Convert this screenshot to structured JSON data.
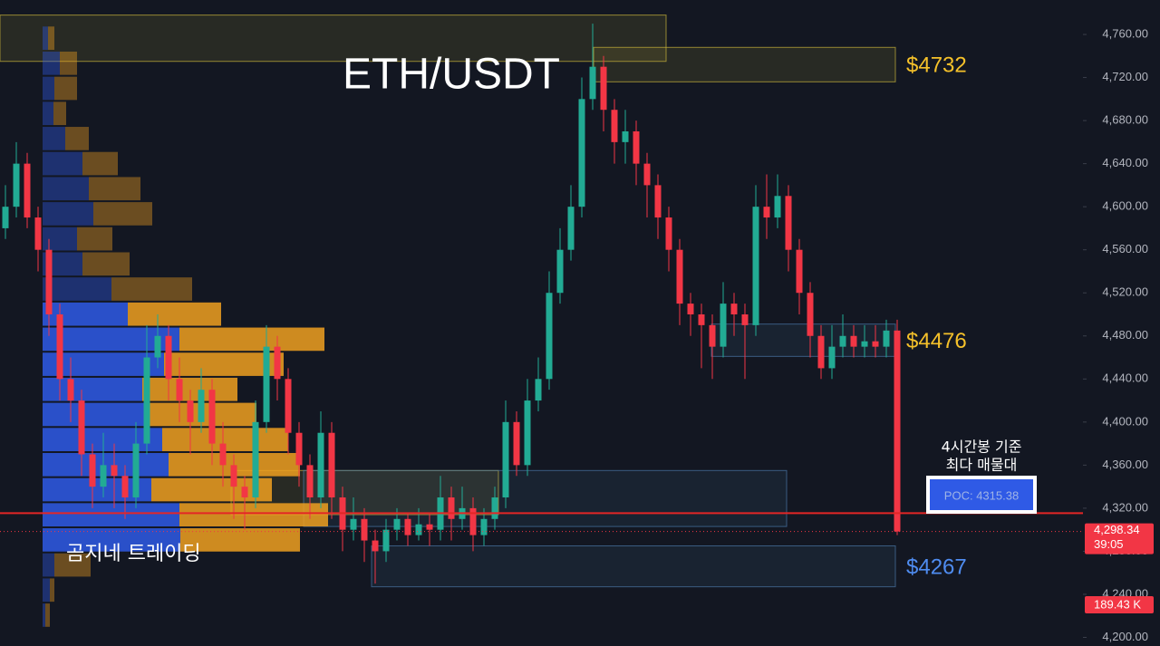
{
  "chart_data": {
    "type": "candlestick",
    "title": "ETH/USDT",
    "watermark": "곰지네 트레이딩",
    "ylim": [
      4192,
      4792
    ],
    "yticks": [
      {
        "value": 4200,
        "label": "4,200.00"
      },
      {
        "value": 4240,
        "label": "4,240.00"
      },
      {
        "value": 4280,
        "label": "4,280.00"
      },
      {
        "value": 4320,
        "label": "4,320.00"
      },
      {
        "value": 4360,
        "label": "4,360.00"
      },
      {
        "value": 4400,
        "label": "4,400.00"
      },
      {
        "value": 4440,
        "label": "4,440.00"
      },
      {
        "value": 4480,
        "label": "4,480.00"
      },
      {
        "value": 4520,
        "label": "4,520.00"
      },
      {
        "value": 4560,
        "label": "4,560.00"
      },
      {
        "value": 4600,
        "label": "4,600.00"
      },
      {
        "value": 4640,
        "label": "4,640.00"
      },
      {
        "value": 4680,
        "label": "4,680.00"
      },
      {
        "value": 4720,
        "label": "4,720.00"
      },
      {
        "value": 4760,
        "label": "4,760.00"
      }
    ],
    "up_color": "#22ab94",
    "down_color": "#f23645",
    "open": [
      4580,
      4600,
      4640,
      4590,
      4560,
      4500,
      4440,
      4420,
      4370,
      4340,
      4360,
      4350,
      4330,
      4380,
      4460,
      4480,
      4440,
      4420,
      4400,
      4430,
      4380,
      4360,
      4340,
      4330,
      4400,
      4470,
      4440,
      4390,
      4360,
      4330,
      4390,
      4330,
      4300,
      4310,
      4290,
      4280,
      4300,
      4310,
      4295,
      4305,
      4300,
      4330,
      4310,
      4320,
      4295,
      4310,
      4330,
      4400,
      4360,
      4420,
      4440,
      4520,
      4560,
      4600,
      4700,
      4730,
      4690,
      4660,
      4670,
      4640,
      4620,
      4590,
      4560,
      4510,
      4500,
      4490,
      4470,
      4510,
      4500,
      4490,
      4600,
      4590,
      4610,
      4560,
      4520,
      4480,
      4450,
      4470,
      4480,
      4470,
      4475,
      4470,
      4485
    ],
    "high": [
      4620,
      4660,
      4650,
      4600,
      4570,
      4510,
      4460,
      4430,
      4380,
      4390,
      4380,
      4360,
      4400,
      4490,
      4500,
      4490,
      4460,
      4430,
      4450,
      4440,
      4400,
      4370,
      4350,
      4420,
      4490,
      4480,
      4450,
      4400,
      4370,
      4410,
      4400,
      4340,
      4330,
      4320,
      4300,
      4310,
      4320,
      4315,
      4320,
      4315,
      4350,
      4340,
      4340,
      4330,
      4320,
      4340,
      4420,
      4410,
      4440,
      4460,
      4540,
      4580,
      4620,
      4720,
      4770,
      4740,
      4700,
      4690,
      4680,
      4650,
      4630,
      4600,
      4570,
      4520,
      4510,
      4500,
      4530,
      4520,
      4510,
      4620,
      4630,
      4630,
      4620,
      4570,
      4530,
      4490,
      4490,
      4500,
      4490,
      4490,
      4490,
      4495,
      4495
    ],
    "low": [
      4570,
      4590,
      4580,
      4540,
      4480,
      4420,
      4400,
      4350,
      4320,
      4330,
      4320,
      4310,
      4320,
      4370,
      4450,
      4420,
      4400,
      4370,
      4390,
      4360,
      4340,
      4310,
      4300,
      4320,
      4390,
      4420,
      4370,
      4340,
      4310,
      4320,
      4310,
      4280,
      4290,
      4270,
      4250,
      4270,
      4290,
      4285,
      4290,
      4285,
      4290,
      4290,
      4300,
      4280,
      4285,
      4300,
      4320,
      4350,
      4350,
      4410,
      4430,
      4510,
      4550,
      4590,
      4690,
      4670,
      4640,
      4640,
      4620,
      4590,
      4570,
      4540,
      4490,
      4480,
      4450,
      4440,
      4460,
      4480,
      4440,
      4480,
      4570,
      4580,
      4540,
      4500,
      4460,
      4440,
      4440,
      4460,
      4460,
      4460,
      4460,
      4460,
      4295
    ],
    "close": [
      4600,
      4640,
      4590,
      4560,
      4500,
      4440,
      4420,
      4370,
      4340,
      4360,
      4350,
      4330,
      4380,
      4460,
      4480,
      4440,
      4420,
      4400,
      4430,
      4380,
      4360,
      4340,
      4330,
      4400,
      4470,
      4440,
      4390,
      4360,
      4330,
      4390,
      4330,
      4300,
      4310,
      4290,
      4280,
      4300,
      4310,
      4295,
      4305,
      4300,
      4330,
      4310,
      4320,
      4295,
      4310,
      4330,
      4400,
      4360,
      4420,
      4440,
      4520,
      4560,
      4600,
      4700,
      4730,
      4690,
      4660,
      4670,
      4640,
      4620,
      4590,
      4560,
      4510,
      4500,
      4490,
      4470,
      4510,
      4500,
      4490,
      4600,
      4590,
      4610,
      4560,
      4520,
      4480,
      4450,
      4470,
      4480,
      4470,
      4475,
      4470,
      4485,
      4298.34
    ],
    "volume_profile": {
      "bins": [
        4209.0,
        4232.3,
        4255.6,
        4278.9,
        4302.2,
        4325.5,
        4348.8,
        4372.1,
        4395.4,
        4418.7,
        4442.0,
        4465.3,
        4488.6,
        4511.9,
        4535.2,
        4558.5,
        4581.8,
        4605.1,
        4628.4,
        4651.7,
        4675.0,
        4698.3,
        4721.6,
        4744.9,
        4768.2
      ],
      "buy": [
        3,
        8,
        13,
        152,
        151,
        120,
        139,
        132,
        114,
        110,
        134,
        151,
        94,
        76,
        44,
        38,
        56,
        51,
        44,
        25,
        12,
        13,
        19,
        6
      ],
      "sell": [
        5,
        5,
        40,
        132,
        164,
        133,
        145,
        139,
        122,
        105,
        132,
        160,
        103,
        89,
        52,
        39,
        65,
        57,
        39,
        26,
        14,
        25,
        19,
        7
      ],
      "xlim": [
        0,
        1148
      ],
      "value_area": [
        4278.9,
        4511.9
      ],
      "buy_color": "#2f5ae6",
      "sell_color": "#f0a020"
    },
    "zones": [
      {
        "low": 4735,
        "high": 4778,
        "color": "#c9b43a"
      },
      {
        "low": 4716,
        "high": 4748,
        "color": "#c9b43a",
        "label": "$4732",
        "label_color": "#f5c12a"
      },
      {
        "low": 4461,
        "high": 4491,
        "color": "#4a78a8",
        "label": "$4476",
        "label_color": "#f5c12a"
      },
      {
        "low": 4314,
        "high": 4355,
        "color": "#c9b43a"
      },
      {
        "low": 4303,
        "high": 4355,
        "color": "#4a78a8"
      },
      {
        "low": 4247,
        "high": 4285,
        "color": "#4a78a8",
        "label": "$4267",
        "label_color": "#4f8cf0"
      }
    ],
    "poc": {
      "value": 4315.38,
      "label": "POC: 4315.38",
      "caption": [
        "4시간봉 기준",
        "최다 매물대"
      ],
      "color": "#e32626"
    },
    "last_price": {
      "value": 4298.34,
      "label": "4,298.34"
    },
    "countdown": "39:05",
    "volume_label": "189.43 K"
  }
}
